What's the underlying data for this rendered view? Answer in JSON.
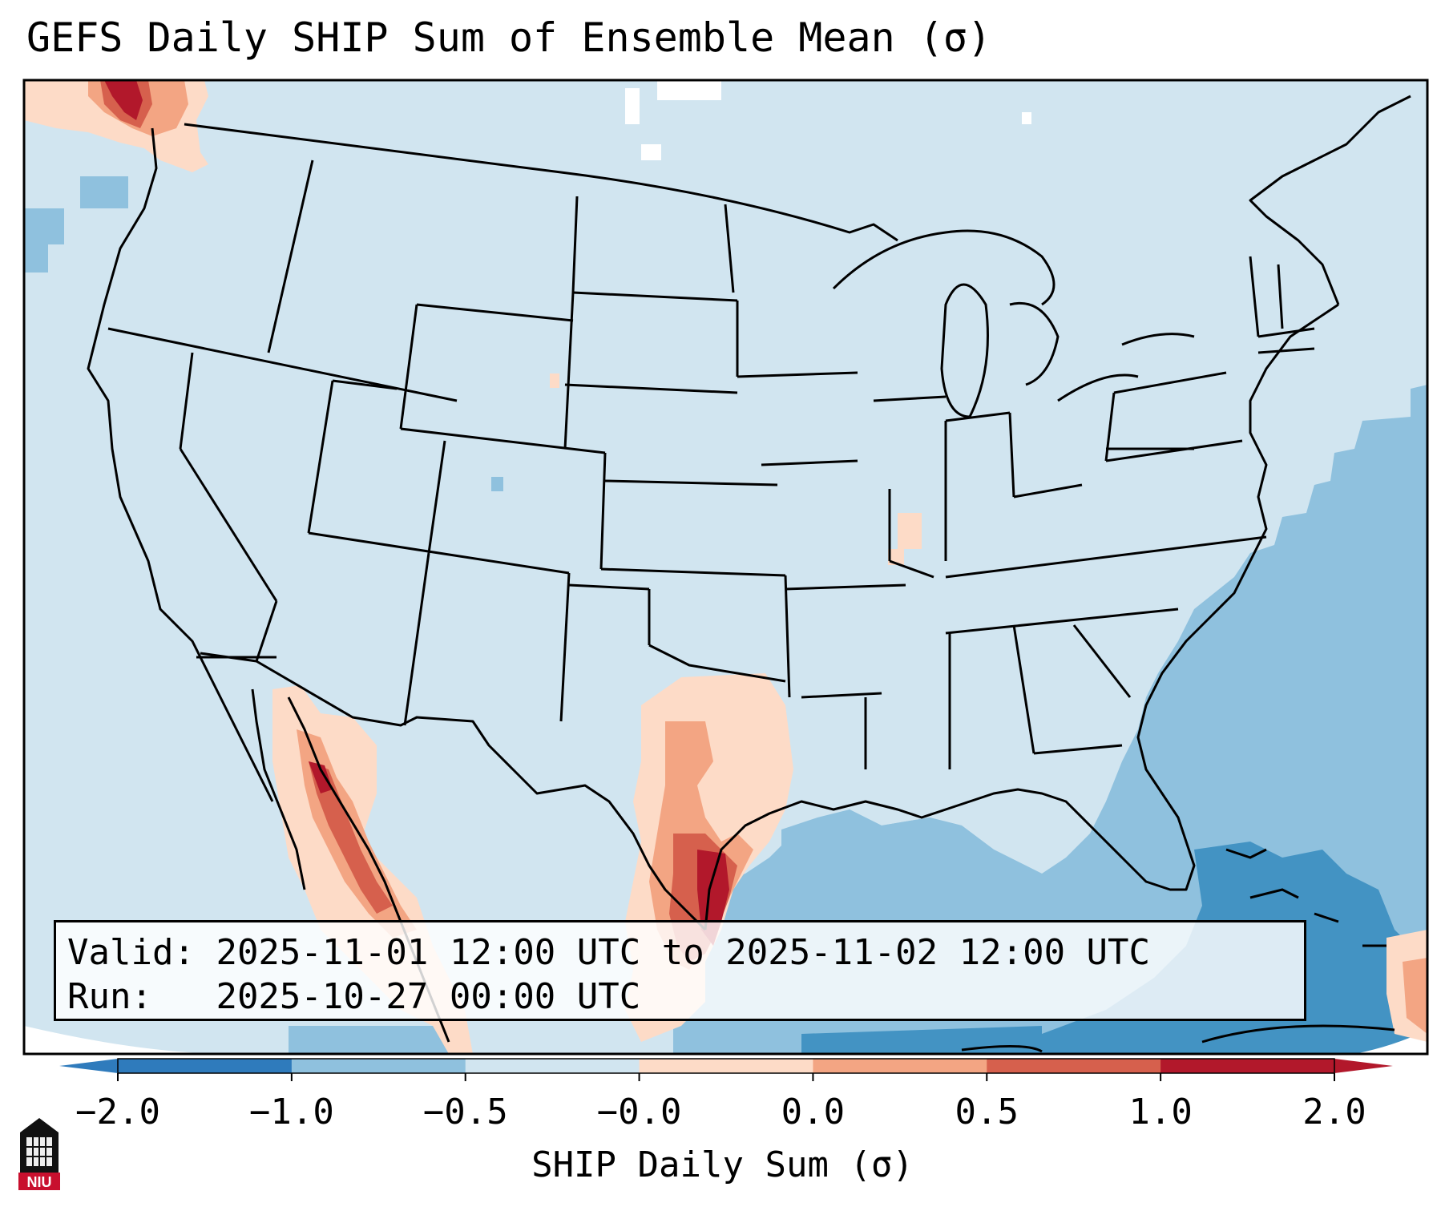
{
  "title": "GEFS Daily SHIP Sum of Ensemble Mean (σ)",
  "info": {
    "valid_label": "Valid:",
    "valid_value": "2025-11-01 12:00 UTC to 2025-11-02 12:00 UTC",
    "run_label": "Run:",
    "run_value": "2025-10-27 00:00 UTC"
  },
  "colorbar": {
    "label": "SHIP Daily Sum (σ)",
    "ticks": [
      "−2.0",
      "−1.0",
      "−0.5",
      "−0.0",
      "0.0",
      "0.5",
      "1.0",
      "2.0"
    ],
    "colors": [
      "#2f7bbc",
      "#8fc1de",
      "#d1e5f0",
      "#fddbc7",
      "#f3a583",
      "#d6604d",
      "#b2182b"
    ],
    "extend": "both"
  },
  "map": {
    "background_color": "#d1e5f0",
    "ocean_anomaly_color": "#8fc1de",
    "strong_negative_color": "#4393c3"
  },
  "logo": {
    "text": "NIU"
  }
}
